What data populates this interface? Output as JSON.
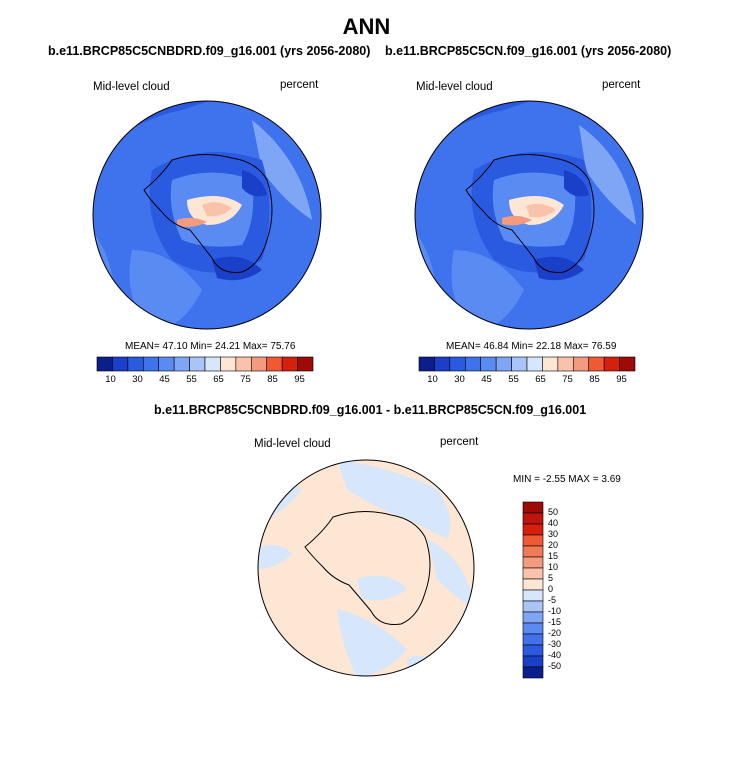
{
  "title": "ANN",
  "colors": {
    "dark_blue": "#0a22a8",
    "blue": "#2a5ae0",
    "mid_blue": "#3f73ee",
    "light_blue": "#6f9af2",
    "pale_blue": "#a9c4f7",
    "very_pale_blue": "#d6e6fb",
    "cream": "#fde6d4",
    "peach": "#f9c3ab",
    "salmon": "#f39b7e",
    "orange_red": "#ef5a35",
    "red": "#d6200c",
    "dark_red": "#9e0a06"
  },
  "panels": [
    {
      "case": "b.e11.BRCP85C5CNBDRD.f09_g16.001 (yrs 2056-2080)",
      "variable": "Mid-level cloud",
      "units": "percent",
      "stats": "MEAN= 47.10  Min= 24.21  Max= 75.76"
    },
    {
      "case": "b.e11.BRCP85C5CN.f09_g16.001 (yrs 2056-2080)",
      "variable": "Mid-level cloud",
      "units": "percent",
      "stats": "MEAN= 46.84  Min= 22.18  Max= 76.59"
    }
  ],
  "colorbar_top": {
    "labels": [
      "10",
      "30",
      "45",
      "55",
      "65",
      "75",
      "85",
      "95"
    ],
    "colors": [
      "#0a1e8c",
      "#1a3fc8",
      "#2a5ae0",
      "#3f73ee",
      "#5a8bf2",
      "#7fa6f5",
      "#a9c4f7",
      "#d6e6fb",
      "#fde6d4",
      "#f9c3ab",
      "#f39b7e",
      "#ef5a35",
      "#d6200c",
      "#9e0a06"
    ]
  },
  "difference": {
    "title": "b.e11.BRCP85C5CNBDRD.f09_g16.001 - b.e11.BRCP85C5CN.f09_g16.001",
    "variable": "Mid-level cloud",
    "units": "percent",
    "stats": "MIN =  -2.55 MAX =   3.69",
    "colorbar_labels": [
      "50",
      "40",
      "30",
      "20",
      "15",
      "10",
      "5",
      "0",
      "-5",
      "-10",
      "-15",
      "-20",
      "-30",
      "-40",
      "-50"
    ],
    "colorbar_colors": [
      "#9e0a06",
      "#c0150a",
      "#d6200c",
      "#ef5a35",
      "#f37a56",
      "#f39b7e",
      "#f9c3ab",
      "#fde6d4",
      "#d6e6fb",
      "#a9c4f7",
      "#7fa6f5",
      "#5a8bf2",
      "#3f73ee",
      "#2a5ae0",
      "#1a3fc8",
      "#0a1e8c"
    ]
  }
}
